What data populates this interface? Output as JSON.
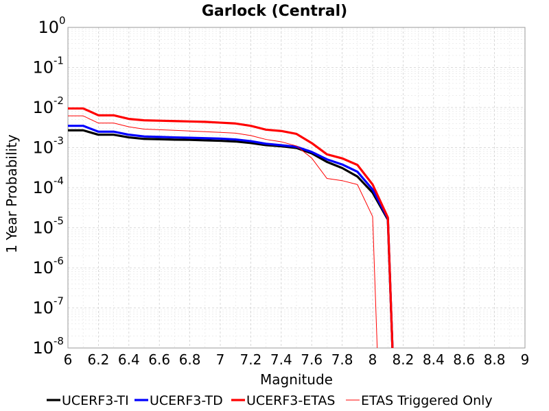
{
  "chart_data": {
    "type": "line",
    "title": "Garlock (Central)",
    "xlabel": "Magnitude",
    "ylabel": "1 Year Probability",
    "yscale": "log",
    "xlim": [
      6,
      9
    ],
    "ylim_exponents": [
      -8,
      0
    ],
    "x_ticks": [
      "6",
      "6.2",
      "6.4",
      "6.6",
      "6.8",
      "7",
      "7.2",
      "7.4",
      "7.6",
      "7.8",
      "8",
      "8.2",
      "8.4",
      "8.6",
      "8.8",
      "9"
    ],
    "y_tick_base": "10",
    "y_tick_exponents": [
      "0",
      "-1",
      "-2",
      "-3",
      "-4",
      "-5",
      "-6",
      "-7",
      "-8"
    ],
    "grid": true,
    "legend_position": "bottom",
    "series": [
      {
        "name": "UCERF3-TI",
        "color": "#000000",
        "line_weight": "thick",
        "x": [
          6.0,
          6.1,
          6.2,
          6.3,
          6.4,
          6.5,
          6.6,
          6.7,
          6.8,
          6.9,
          7.0,
          7.1,
          7.2,
          7.3,
          7.4,
          7.5,
          7.6,
          7.7,
          7.8,
          7.9,
          8.0,
          8.1,
          8.13
        ],
        "y": [
          0.0027,
          0.0027,
          0.0021,
          0.0021,
          0.0018,
          0.00165,
          0.00162,
          0.00158,
          0.00156,
          0.00152,
          0.00148,
          0.00142,
          0.0013,
          0.00115,
          0.00108,
          0.00098,
          0.00072,
          0.00044,
          0.00031,
          0.00019,
          7.5e-05,
          1.6e-05,
          1e-08
        ]
      },
      {
        "name": "UCERF3-TD",
        "color": "#0000ff",
        "line_weight": "thick",
        "x": [
          6.0,
          6.1,
          6.2,
          6.3,
          6.4,
          6.5,
          6.6,
          6.7,
          6.8,
          6.9,
          7.0,
          7.1,
          7.2,
          7.3,
          7.4,
          7.5,
          7.6,
          7.7,
          7.8,
          7.9,
          8.0,
          8.1,
          8.13
        ],
        "y": [
          0.0035,
          0.0035,
          0.0025,
          0.0025,
          0.0021,
          0.0019,
          0.00185,
          0.0018,
          0.00176,
          0.00172,
          0.00168,
          0.0016,
          0.00145,
          0.00125,
          0.00115,
          0.00105,
          0.00078,
          0.00051,
          0.00038,
          0.00025,
          9e-05,
          1.7e-05,
          1e-08
        ]
      },
      {
        "name": "UCERF3-ETAS",
        "color": "#ff0000",
        "line_weight": "thick",
        "x": [
          6.0,
          6.1,
          6.2,
          6.3,
          6.4,
          6.5,
          6.6,
          6.7,
          6.8,
          6.9,
          7.0,
          7.1,
          7.2,
          7.3,
          7.4,
          7.5,
          7.6,
          7.7,
          7.8,
          7.9,
          8.0,
          8.1,
          8.13
        ],
        "y": [
          0.0095,
          0.0095,
          0.0064,
          0.0064,
          0.0052,
          0.0048,
          0.0047,
          0.0046,
          0.0045,
          0.0044,
          0.0042,
          0.004,
          0.0035,
          0.0028,
          0.0026,
          0.0022,
          0.0013,
          0.00068,
          0.00054,
          0.00037,
          0.00012,
          1.8e-05,
          1e-08
        ]
      },
      {
        "name": "ETAS Triggered Only",
        "color": "#ff0000",
        "line_weight": "thin",
        "x": [
          6.0,
          6.1,
          6.2,
          6.3,
          6.4,
          6.5,
          6.6,
          6.7,
          6.8,
          6.9,
          7.0,
          7.1,
          7.2,
          7.3,
          7.4,
          7.5,
          7.6,
          7.7,
          7.8,
          7.9,
          8.0,
          8.03
        ],
        "y": [
          0.0062,
          0.0062,
          0.0041,
          0.0041,
          0.0033,
          0.0029,
          0.0028,
          0.0027,
          0.0026,
          0.0025,
          0.0024,
          0.0023,
          0.002,
          0.0016,
          0.0014,
          0.0011,
          0.00055,
          0.00017,
          0.00015,
          0.00012,
          1.9e-05,
          1e-08
        ]
      }
    ]
  }
}
